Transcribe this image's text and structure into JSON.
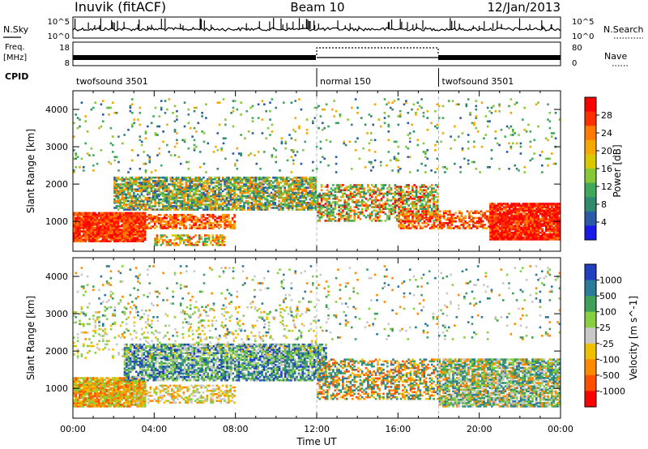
{
  "header": {
    "station": "Inuvik (fitACF)",
    "beam": "Beam 10",
    "date": "12/Jan/2013"
  },
  "status_panels": {
    "nsky_label": "N.Sky",
    "nsky_top": "10^5",
    "nsky_bottom": "10^0",
    "nsearch_label": "N.Search",
    "nsearch_top": "10^5",
    "nsearch_bottom": "10^0",
    "freq_label_1": "Freq.",
    "freq_label_2": "[MHz]",
    "freq_ticks": [
      "18",
      "8"
    ],
    "nave_label": "Nave",
    "nave_ticks": [
      "80",
      "0"
    ],
    "cpid_label": "CPID",
    "cpid_segments": [
      {
        "label": "twofsound 3501",
        "start_hour": 0,
        "end_hour": 12
      },
      {
        "label": "normal 150",
        "start_hour": 12,
        "end_hour": 18
      },
      {
        "label": "twofsound 3501",
        "start_hour": 18,
        "end_hour": 24
      }
    ]
  },
  "chart_data": [
    {
      "type": "heatmap",
      "ylabel": "Slant Range [km]",
      "xlabel": "Time UT",
      "xlim": [
        0,
        24
      ],
      "ylim": [
        200,
        4500
      ],
      "x_ticks": [
        "00:00",
        "04:00",
        "08:00",
        "12:00",
        "16:00",
        "20:00",
        "00:00"
      ],
      "y_ticks": [
        "1000",
        "2000",
        "3000",
        "4000"
      ],
      "colorbar_label": "Power [dB]",
      "colorbar_ticks": [
        "28",
        "24",
        "20",
        "16",
        "12",
        "8",
        "4"
      ],
      "colorbar_colors": [
        "#ff0000",
        "#ff3000",
        "#ff7a00",
        "#f5a800",
        "#d9c800",
        "#86c838",
        "#3fa85a",
        "#2f8a6e",
        "#2a5aa8",
        "#1a1ae8"
      ],
      "bands": [
        {
          "x0": 0,
          "x1": 3.6,
          "y0": 450,
          "y1": 1250,
          "palette": [
            0,
            1,
            2
          ],
          "density": 0.95
        },
        {
          "x0": 3.6,
          "x1": 8,
          "y0": 800,
          "y1": 1200,
          "palette": [
            0,
            1,
            2,
            3
          ],
          "density": 0.7
        },
        {
          "x0": 4,
          "x1": 7.5,
          "y0": 350,
          "y1": 650,
          "palette": [
            1,
            2,
            4,
            6
          ],
          "density": 0.6
        },
        {
          "x0": 2,
          "x1": 12,
          "y0": 1300,
          "y1": 2200,
          "palette": [
            5,
            6,
            7,
            8,
            3,
            2
          ],
          "density": 0.75
        },
        {
          "x0": 12,
          "x1": 18,
          "y0": 1000,
          "y1": 2000,
          "palette": [
            5,
            6,
            7,
            3,
            2,
            0
          ],
          "density": 0.55
        },
        {
          "x0": 16,
          "x1": 21,
          "y0": 800,
          "y1": 1300,
          "palette": [
            0,
            1,
            2,
            3
          ],
          "density": 0.6
        },
        {
          "x0": 20.5,
          "x1": 24,
          "y0": 500,
          "y1": 1500,
          "palette": [
            0,
            1,
            0,
            2
          ],
          "density": 0.95
        },
        {
          "x0": 0,
          "x1": 24,
          "y0": 2300,
          "y1": 4300,
          "palette": [
            6,
            7,
            8,
            5,
            3
          ],
          "density": 0.05
        }
      ]
    },
    {
      "type": "heatmap",
      "ylabel": "Slant Range [km]",
      "xlabel": "Time UT",
      "xlim": [
        0,
        24
      ],
      "ylim": [
        200,
        4500
      ],
      "x_ticks": [
        "00:00",
        "04:00",
        "08:00",
        "12:00",
        "16:00",
        "20:00",
        "00:00"
      ],
      "y_ticks": [
        "1000",
        "2000",
        "3000",
        "4000"
      ],
      "colorbar_label": "Velocity [m s^-1]",
      "colorbar_ticks": [
        "1000",
        "500",
        "100",
        "25",
        "-25",
        "-100",
        "-500",
        "-1000"
      ],
      "colorbar_colors": [
        "#2040c0",
        "#2a7a9a",
        "#3fa05a",
        "#86d040",
        "#c8c8c8",
        "#f0c000",
        "#ff8a00",
        "#ff5000",
        "#ff0000"
      ],
      "bands": [
        {
          "x0": 0,
          "x1": 3.6,
          "y0": 500,
          "y1": 1300,
          "palette": [
            6,
            7,
            5,
            3
          ],
          "density": 0.9
        },
        {
          "x0": 2.5,
          "x1": 12.5,
          "y0": 1200,
          "y1": 2200,
          "palette": [
            1,
            2,
            3,
            4,
            0
          ],
          "density": 0.75
        },
        {
          "x0": 3,
          "x1": 8,
          "y0": 600,
          "y1": 1100,
          "palette": [
            3,
            4,
            5,
            6
          ],
          "density": 0.5
        },
        {
          "x0": 12,
          "x1": 18,
          "y0": 700,
          "y1": 1800,
          "palette": [
            1,
            2,
            5,
            6,
            7
          ],
          "density": 0.5
        },
        {
          "x0": 18,
          "x1": 24,
          "y0": 500,
          "y1": 1800,
          "palette": [
            2,
            3,
            4,
            6,
            1
          ],
          "density": 0.8
        },
        {
          "x0": 0,
          "x1": 12,
          "y0": 1800,
          "y1": 3200,
          "palette": [
            4,
            3,
            5
          ],
          "density": 0.12
        },
        {
          "x0": 0,
          "x1": 24,
          "y0": 2300,
          "y1": 4300,
          "palette": [
            1,
            2,
            3,
            6,
            4
          ],
          "density": 0.05
        }
      ]
    }
  ]
}
